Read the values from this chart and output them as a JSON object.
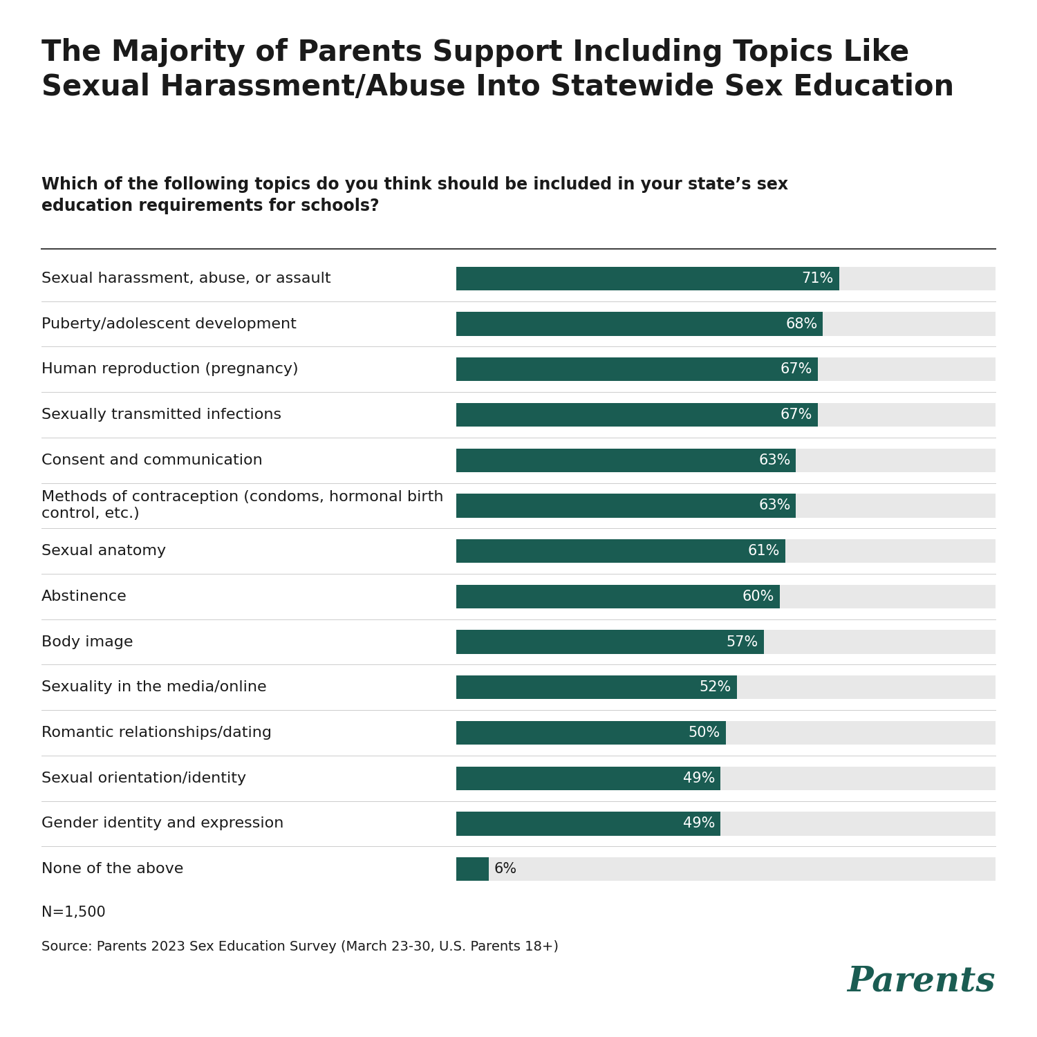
{
  "title_line1": "The Majority of Parents Support Including Topics Like",
  "title_line2": "Sexual Harassment/Abuse Into Statewide Sex Education",
  "question": "Which of the following topics do you think should be included in your state’s sex\neducation requirements for schools?",
  "categories": [
    "Sexual harassment, abuse, or assault",
    "Puberty/adolescent development",
    "Human reproduction (pregnancy)",
    "Sexually transmitted infections",
    "Consent and communication",
    "Methods of contraception (condoms, hormonal birth\ncontrol, etc.)",
    "Sexual anatomy",
    "Abstinence",
    "Body image",
    "Sexuality in the media/online",
    "Romantic relationships/dating",
    "Sexual orientation/identity",
    "Gender identity and expression",
    "None of the above"
  ],
  "values": [
    71,
    68,
    67,
    67,
    63,
    63,
    61,
    60,
    57,
    52,
    50,
    49,
    49,
    6
  ],
  "bar_color": "#1a5c52",
  "bg_bar_color": "#e8e8e8",
  "max_val": 100,
  "note": "N=1,500",
  "source": "Source: Parents 2023 Sex Education Survey (March 23-30, U.S. Parents 18+)",
  "brand": "Parents",
  "brand_color": "#1a5c52",
  "title_fontsize": 30,
  "question_fontsize": 17,
  "label_fontsize": 16,
  "value_fontsize": 15,
  "note_fontsize": 15,
  "source_fontsize": 14,
  "brand_fontsize": 36,
  "bg_color": "#ffffff",
  "text_color": "#1a1a1a",
  "separator_color": "#aaaaaa"
}
